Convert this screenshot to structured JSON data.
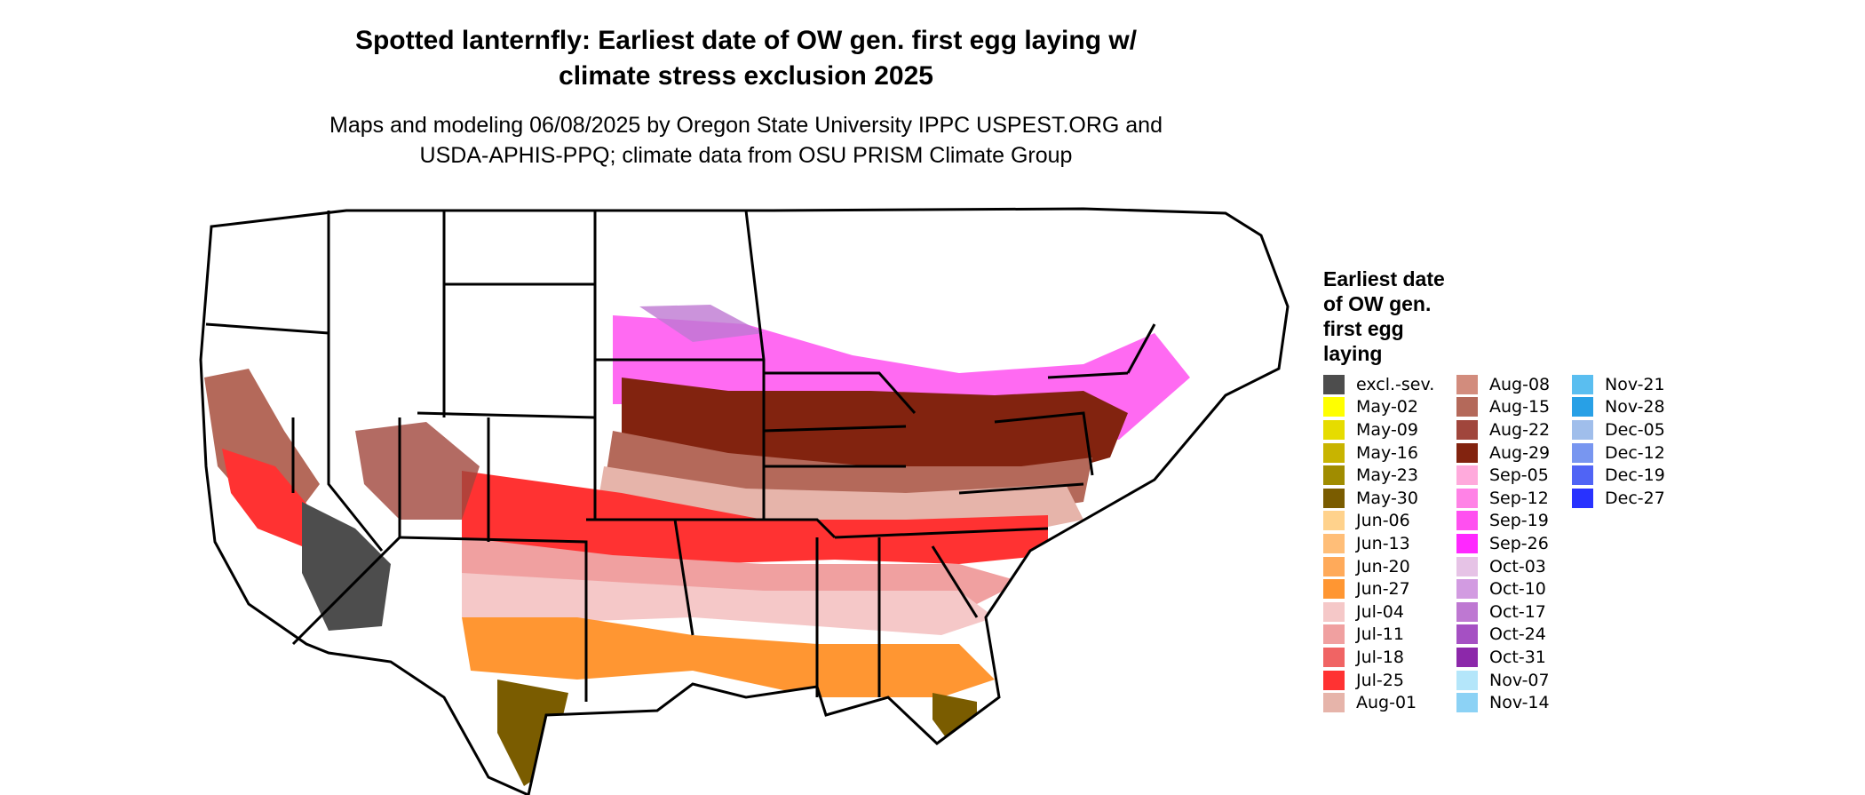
{
  "map": {
    "title": "Spotted lanternfly: Earliest date of OW gen. first egg laying w/\nclimate stress exclusion 2025",
    "subtitle": "Maps and modeling 06/08/2025 by Oregon State University IPPC USPEST.ORG and\nUSDA-APHIS-PPQ; climate data from OSU PRISM Climate Group",
    "region": "Contiguous United States"
  },
  "legend": {
    "title": "Earliest date\nof OW gen.\nfirst egg\nlaying",
    "columns": [
      [
        {
          "label": "excl.-sev.",
          "color": "#4d4d4d"
        },
        {
          "label": "May-02",
          "color": "#ffff00"
        },
        {
          "label": "May-09",
          "color": "#e6dc00"
        },
        {
          "label": "May-16",
          "color": "#c8b400"
        },
        {
          "label": "May-23",
          "color": "#a08c00"
        },
        {
          "label": "May-30",
          "color": "#7a5c00"
        },
        {
          "label": "Jun-06",
          "color": "#ffd28c"
        },
        {
          "label": "Jun-13",
          "color": "#ffbe78"
        },
        {
          "label": "Jun-20",
          "color": "#ffaa5a"
        },
        {
          "label": "Jun-27",
          "color": "#ff9632"
        },
        {
          "label": "Jul-04",
          "color": "#f5c8c8"
        },
        {
          "label": "Jul-11",
          "color": "#f0a0a0"
        },
        {
          "label": "Jul-18",
          "color": "#f06464"
        },
        {
          "label": "Jul-25",
          "color": "#ff3232"
        },
        {
          "label": "Aug-01",
          "color": "#e6b4aa"
        }
      ],
      [
        {
          "label": "Aug-08",
          "color": "#d28c7d"
        },
        {
          "label": "Aug-15",
          "color": "#b4695a"
        },
        {
          "label": "Aug-22",
          "color": "#a0463c"
        },
        {
          "label": "Aug-29",
          "color": "#82230f"
        },
        {
          "label": "Sep-05",
          "color": "#ffaadc"
        },
        {
          "label": "Sep-12",
          "color": "#ff82e6"
        },
        {
          "label": "Sep-19",
          "color": "#ff50f0"
        },
        {
          "label": "Sep-26",
          "color": "#ff28ff"
        },
        {
          "label": "Oct-03",
          "color": "#e6c3e6"
        },
        {
          "label": "Oct-10",
          "color": "#d29be1"
        },
        {
          "label": "Oct-17",
          "color": "#be78d2"
        },
        {
          "label": "Oct-24",
          "color": "#a550c3"
        },
        {
          "label": "Oct-31",
          "color": "#8c28aa"
        },
        {
          "label": "Nov-07",
          "color": "#b4e6fa"
        },
        {
          "label": "Nov-14",
          "color": "#8cd2f5"
        }
      ],
      [
        {
          "label": "Nov-21",
          "color": "#5abef0"
        },
        {
          "label": "Nov-28",
          "color": "#28a0e6"
        },
        {
          "label": "Dec-05",
          "color": "#a0beeb"
        },
        {
          "label": "Dec-12",
          "color": "#7896f0"
        },
        {
          "label": "Dec-19",
          "color": "#5064f5"
        },
        {
          "label": "Dec-27",
          "color": "#2832ff"
        }
      ]
    ]
  }
}
